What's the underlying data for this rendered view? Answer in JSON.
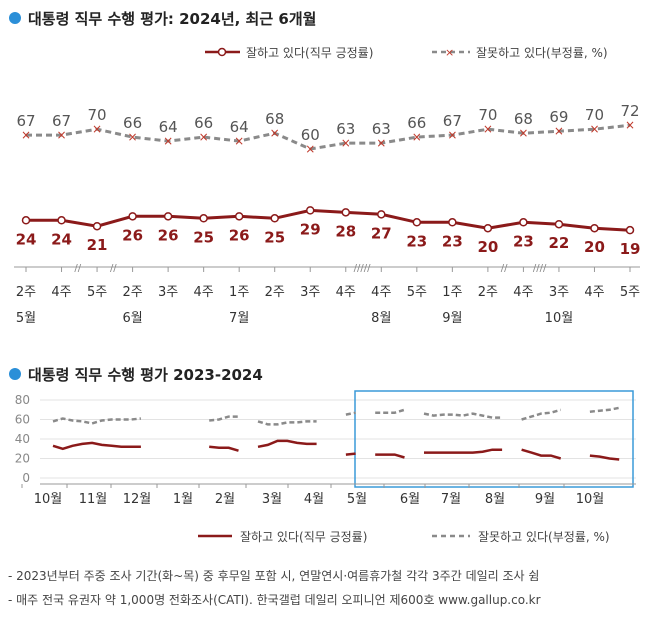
{
  "chart_data": [
    {
      "type": "line",
      "title": "대통령 직무 수행 평가: 2024년, 최근 6개월",
      "legend": {
        "placement": "top-right"
      },
      "categories": [
        "2주",
        "4주",
        "5주",
        "2주",
        "3주",
        "4주",
        "1주",
        "2주",
        "3주",
        "4주",
        "4주",
        "5주",
        "1주",
        "2주",
        "4주",
        "3주",
        "4주",
        "5주"
      ],
      "months": [
        {
          "label": "5월",
          "index": 0
        },
        {
          "label": "6월",
          "index": 3
        },
        {
          "label": "7월",
          "index": 6
        },
        {
          "label": "8월",
          "index": 10
        },
        {
          "label": "9월",
          "index": 12
        },
        {
          "label": "10월",
          "index": 15
        }
      ],
      "series": [
        {
          "name": "잘하고 있다(직무 긍정률)",
          "color": "#8b1a1a",
          "style": "solid",
          "marker": "circle",
          "values": [
            24,
            24,
            21,
            26,
            26,
            25,
            26,
            25,
            29,
            28,
            27,
            23,
            23,
            20,
            23,
            22,
            20,
            19
          ]
        },
        {
          "name": "잘못하고 있다(부정률, %)",
          "color": "#8a8a8a",
          "style": "dashed",
          "marker": "x",
          "values": [
            67,
            67,
            70,
            66,
            64,
            66,
            64,
            68,
            60,
            63,
            63,
            66,
            67,
            70,
            68,
            69,
            70,
            72
          ]
        }
      ],
      "ylim": [
        0,
        85
      ],
      "grid": false
    },
    {
      "type": "line",
      "title": "대통령 직무 수행 평가 2023-2024",
      "legend": {
        "placement": "bottom"
      },
      "x_tick_labels": [
        "10월",
        "11월",
        "12월",
        "1월",
        "2월",
        "3월",
        "4월",
        "5월",
        "6월",
        "7월",
        "8월",
        "9월",
        "10월"
      ],
      "y_ticks": [
        0,
        20,
        40,
        60,
        80
      ],
      "ylim": [
        0,
        85
      ],
      "grid": true,
      "highlight_box": "5월–10월 2024",
      "segments": [
        {
          "approval": [
            33,
            30,
            33,
            35,
            36,
            34,
            33,
            32,
            32,
            32
          ],
          "disapproval": [
            58,
            61,
            59,
            58,
            56,
            59,
            60,
            60,
            60,
            61
          ],
          "start_week": 0
        },
        {
          "approval": [
            32,
            31,
            31,
            28
          ],
          "disapproval": [
            59,
            60,
            63,
            63
          ],
          "start_week": 16
        },
        {
          "approval": [
            32,
            34,
            38,
            38,
            36,
            35,
            35
          ],
          "disapproval": [
            58,
            55,
            55,
            57,
            57,
            58,
            58
          ],
          "start_week": 21
        },
        {
          "approval": [
            24,
            25
          ],
          "disapproval": [
            65,
            67
          ],
          "start_week": 30
        },
        {
          "approval": [
            24,
            24,
            24,
            21
          ],
          "disapproval": [
            67,
            67,
            67,
            70
          ],
          "start_week": 33
        },
        {
          "approval": [
            26,
            26,
            26,
            26,
            26,
            26,
            27,
            29,
            29
          ],
          "disapproval": [
            66,
            64,
            65,
            65,
            64,
            66,
            64,
            62,
            62
          ],
          "start_week": 38
        },
        {
          "approval": [
            29,
            26,
            23,
            23,
            20
          ],
          "disapproval": [
            60,
            63,
            66,
            67,
            70
          ],
          "start_week": 48
        },
        {
          "approval": [
            23,
            22,
            20,
            19
          ],
          "disapproval": [
            68,
            69,
            70,
            72
          ],
          "start_week": 55
        }
      ],
      "series": [
        {
          "name": "잘하고 있다(직무 긍정률)",
          "color": "#8b1a1a",
          "style": "solid"
        },
        {
          "name": "잘못하고 있다(부정률, %)",
          "color": "#8a8a8a",
          "style": "dashed"
        }
      ]
    }
  ],
  "footnotes": [
    "- 2023년부터 주중 조사 기간(화~목) 중 후무일 포함 시, 연말연시·여름휴가철 각각 3주간 데일리 조사 쉼",
    "- 매주 전국 유권자 약 1,000명 전화조사(CATI). 한국갤럽 데일리 오피니언 제600호 www.gallup.co.kr"
  ],
  "colors": {
    "bullet": "#2b8fd8",
    "approval": "#8b1a1a",
    "disapproval": "#8a8a8a",
    "highlight": "#3a9ad9"
  }
}
